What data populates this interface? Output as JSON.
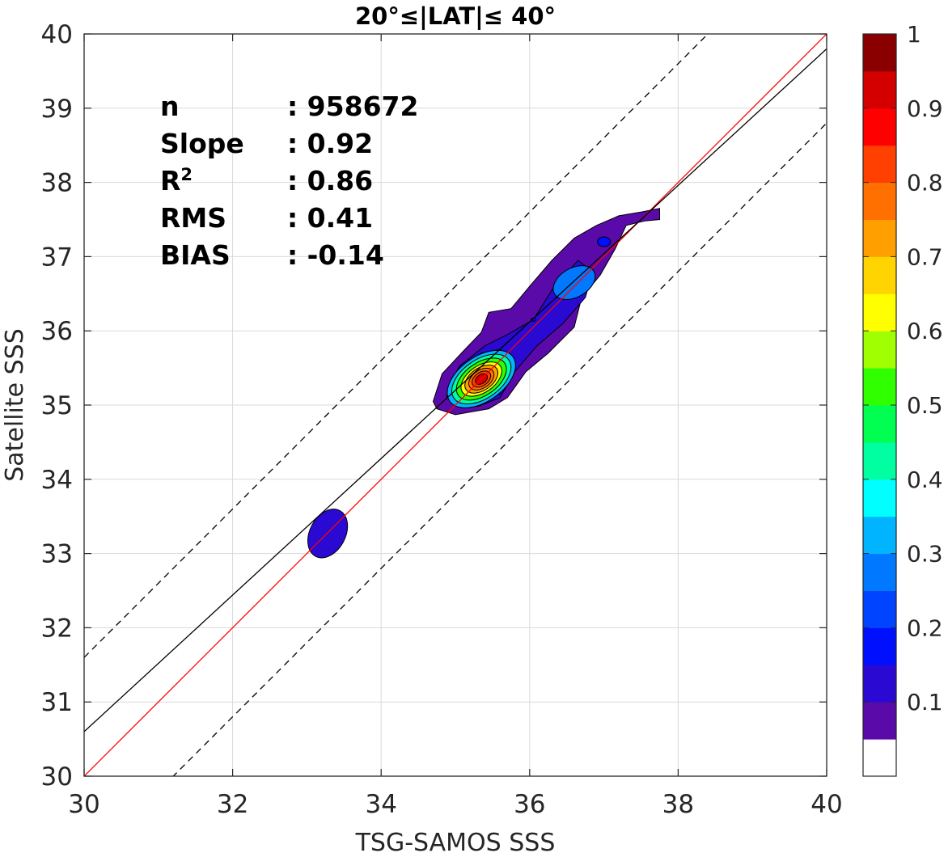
{
  "chart_data": {
    "type": "contour",
    "title": "20°≤|LAT|≤ 40°",
    "xlabel": "TSG-SAMOS SSS",
    "ylabel": "Satellite SSS",
    "xlim": [
      30,
      40
    ],
    "ylim": [
      30,
      40
    ],
    "xticks": [
      30,
      32,
      34,
      36,
      38,
      40
    ],
    "yticks": [
      30,
      31,
      32,
      33,
      34,
      35,
      36,
      37,
      38,
      39,
      40
    ],
    "grid": true,
    "stats": [
      {
        "label": "n",
        "value": ": 958672"
      },
      {
        "label": "Slope",
        "value": ": 0.92"
      },
      {
        "label": "R",
        "sup": "2",
        "value": ": 0.86"
      },
      {
        "label": "RMS",
        "value": ": 0.41"
      },
      {
        "label": "BIAS",
        "value": ": -0.14"
      }
    ],
    "lines": [
      {
        "role": "one-to-one",
        "color": "#ff0000",
        "slope": 1.0,
        "intercept": 0.0,
        "style": "solid"
      },
      {
        "role": "regression-fit",
        "color": "#000000",
        "slope": 0.92,
        "intercept": 3.0,
        "style": "solid"
      },
      {
        "role": "upper-bound",
        "color": "#000000",
        "slope": 1.0,
        "intercept": 1.6,
        "style": "dashed"
      },
      {
        "role": "lower-bound",
        "color": "#000000",
        "slope": 1.0,
        "intercept": -1.2,
        "style": "dashed"
      }
    ],
    "density_peak": {
      "x": 35.35,
      "y": 35.35
    },
    "secondary_peak": {
      "x": 36.6,
      "y": 36.65
    },
    "colorbar": {
      "range": [
        0,
        1
      ],
      "tick_labels": [
        "1",
        "0.9",
        "0.8",
        "0.7",
        "0.6",
        "0.5",
        "0.4",
        "0.3",
        "0.2",
        "0.1"
      ],
      "tick_values": [
        1,
        0.9,
        0.8,
        0.7,
        0.6,
        0.5,
        0.4,
        0.3,
        0.2,
        0.1
      ],
      "colors": [
        "#ffffff",
        "#5a0aa8",
        "#2a0ad2",
        "#0010ff",
        "#0044ff",
        "#0078ff",
        "#00b4ff",
        "#00ffff",
        "#00ffa0",
        "#00ff50",
        "#30ff00",
        "#a0ff00",
        "#ffff00",
        "#ffd400",
        "#ffa000",
        "#ff7000",
        "#ff4000",
        "#ff0000",
        "#d40000",
        "#8a0000"
      ]
    }
  }
}
